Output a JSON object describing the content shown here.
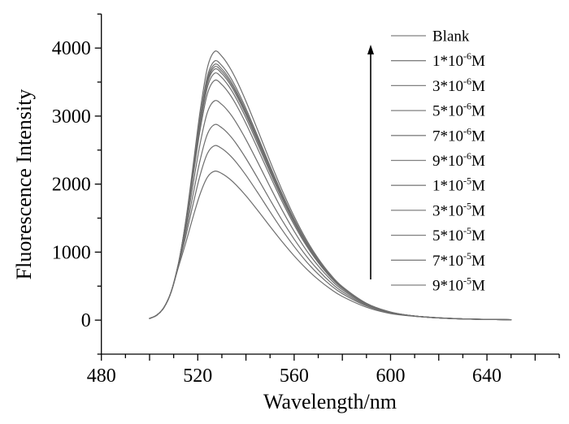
{
  "chart_data": {
    "type": "line",
    "title": "",
    "xlabel": "Wavelength/nm",
    "ylabel": "Fluorescence Intensity",
    "xlim": [
      480,
      670
    ],
    "ylim": [
      -500,
      4500
    ],
    "x_ticks": [
      480,
      520,
      560,
      600,
      640
    ],
    "x_tick_labels": [
      "480",
      "520",
      "560",
      "600",
      "640"
    ],
    "x_minor_step": 10,
    "y_ticks": [
      0,
      1000,
      2000,
      3000,
      4000
    ],
    "y_tick_labels": [
      "0",
      "1000",
      "2000",
      "3000",
      "4000"
    ],
    "y_minor_step": 500,
    "grid": false,
    "legend_position": "top-right",
    "annotation": "upward arrow indicating increasing concentration",
    "x": [
      500,
      503,
      506,
      509,
      512,
      515,
      518,
      521,
      524,
      527,
      530,
      533,
      536,
      540,
      545,
      550,
      555,
      560,
      565,
      570,
      575,
      580,
      590,
      600,
      610,
      620,
      630,
      640,
      650
    ],
    "series": [
      {
        "name": "Blank",
        "label": {
          "base": "Blank",
          "exp": "",
          "unit": ""
        },
        "values": [
          25,
          73,
          187,
          420,
          782,
          1133,
          1511,
          1857,
          2101,
          2190,
          2155,
          2082,
          1985,
          1828,
          1608,
          1378,
          1154,
          945,
          758,
          596,
          460,
          348,
          190,
          97,
          56,
          33,
          17,
          12,
          6
        ]
      },
      {
        "name": "1*10^-6M",
        "label": {
          "base": "1*10",
          "exp": "-6",
          "unit": "M"
        },
        "values": [
          25,
          73,
          187,
          420,
          811,
          1228,
          1695,
          2134,
          2450,
          2565,
          2523,
          2435,
          2318,
          2131,
          1868,
          1594,
          1328,
          1083,
          863,
          675,
          517,
          389,
          209,
          105,
          58,
          34,
          19,
          12,
          6
        ]
      },
      {
        "name": "3*10^-6M",
        "label": {
          "base": "3*10",
          "exp": "-6",
          "unit": "M"
        },
        "values": [
          25,
          73,
          187,
          420,
          827,
          1295,
          1835,
          2355,
          2735,
          2875,
          2827,
          2727,
          2593,
          2378,
          2079,
          1769,
          1468,
          1191,
          945,
          735,
          559,
          418,
          221,
          110,
          60,
          34,
          19,
          11,
          6
        ]
      },
      {
        "name": "5*10^-6M",
        "label": {
          "base": "5*10",
          "exp": "-6",
          "unit": "M"
        },
        "values": [
          25,
          73,
          187,
          420,
          832,
          1358,
          1983,
          2598,
          3055,
          3225,
          3170,
          3055,
          2901,
          2655,
          2313,
          1960,
          1619,
          1307,
          1031,
          797,
          602,
          447,
          233,
          113,
          60,
          34,
          19,
          11,
          6
        ]
      },
      {
        "name": "7*10^-6M",
        "label": {
          "base": "7*10",
          "exp": "-6",
          "unit": "M"
        },
        "values": [
          25,
          73,
          187,
          420,
          832,
          1405,
          2101,
          2801,
          3328,
          3525,
          3463,
          3335,
          3163,
          2890,
          2510,
          2119,
          1743,
          1401,
          1099,
          845,
          634,
          468,
          240,
          115,
          60,
          33,
          18,
          11,
          6
        ]
      },
      {
        "name": "9*10^-6M",
        "label": {
          "base": "9*10",
          "exp": "-6",
          "unit": "M"
        },
        "values": [
          25,
          73,
          187,
          420,
          832,
          1419,
          2140,
          2870,
          3423,
          3630,
          3566,
          3433,
          3255,
          2972,
          2578,
          2174,
          1786,
          1433,
          1122,
          861,
          645,
          475,
          243,
          116,
          60,
          33,
          18,
          11,
          6
        ]
      },
      {
        "name": "1*10^-5M",
        "label": {
          "base": "1*10",
          "exp": "-5",
          "unit": "M"
        },
        "values": [
          25,
          73,
          187,
          420,
          832,
          1427,
          2163,
          2910,
          3478,
          3690,
          3625,
          3489,
          3307,
          3018,
          2617,
          2205,
          1810,
          1450,
          1134,
          869,
          651,
          478,
          244,
          116,
          60,
          33,
          18,
          11,
          6
        ]
      },
      {
        "name": "3*10^-5M",
        "label": {
          "base": "3*10",
          "exp": "-5",
          "unit": "M"
        },
        "values": [
          25,
          73,
          187,
          420,
          832,
          1431,
          2175,
          2933,
          3509,
          3725,
          3659,
          3521,
          3338,
          3045,
          2639,
          2223,
          1823,
          1460,
          1142,
          874,
          654,
          480,
          244,
          116,
          60,
          33,
          18,
          11,
          6
        ]
      },
      {
        "name": "5*10^-5M",
        "label": {
          "base": "5*10",
          "exp": "-5",
          "unit": "M"
        },
        "values": [
          25,
          73,
          187,
          420,
          832,
          1436,
          2188,
          2956,
          3540,
          3760,
          3693,
          3554,
          3368,
          3072,
          2662,
          2241,
          1837,
          1471,
          1149,
          879,
          657,
          482,
          245,
          116,
          60,
          33,
          18,
          11,
          6
        ]
      },
      {
        "name": "7*10^-5M",
        "label": {
          "base": "7*10",
          "exp": "-5",
          "unit": "M"
        },
        "values": [
          25,
          73,
          187,
          420,
          832,
          1442,
          2206,
          2988,
          3586,
          3810,
          3742,
          3600,
          3411,
          3111,
          2694,
          2266,
          1857,
          1485,
          1159,
          886,
          661,
          485,
          245,
          116,
          60,
          33,
          18,
          11,
          6
        ]
      },
      {
        "name": "9*10^-5M",
        "label": {
          "base": "9*10",
          "exp": "-5",
          "unit": "M"
        },
        "values": [
          25,
          73,
          187,
          420,
          832,
          1458,
          2255,
          3079,
          3711,
          3950,
          3879,
          3730,
          3533,
          3218,
          2783,
          2337,
          1911,
          1525,
          1187,
          905,
          674,
          493,
          248,
          120,
          59,
          32,
          18,
          11,
          6
        ]
      }
    ]
  },
  "colors": {
    "axis": "#000000",
    "series": "#6e6e6e",
    "legend_line": "#808080",
    "background": "#ffffff"
  }
}
